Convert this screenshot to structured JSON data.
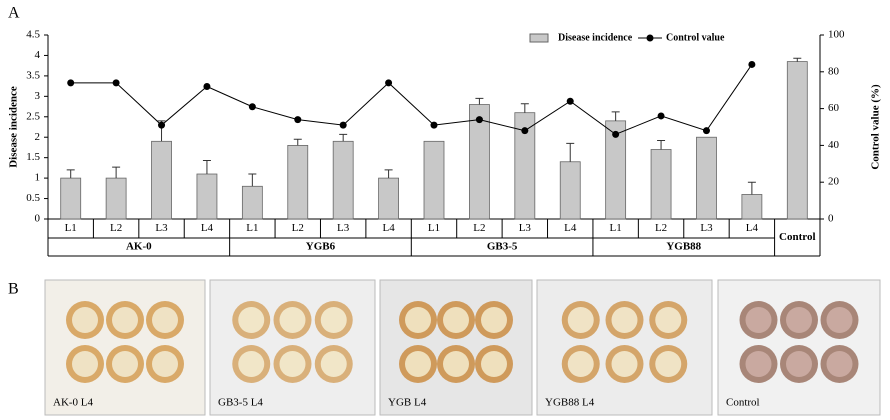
{
  "chart_data": {
    "type": "bar-line",
    "ylabel": "Disease incidence",
    "y2label": "Control value (%)",
    "categories": [
      "L1",
      "L2",
      "L3",
      "L4",
      "L1",
      "L2",
      "L3",
      "L4",
      "L1",
      "L2",
      "L3",
      "L4",
      "L1",
      "L2",
      "L3",
      "L4",
      "Control"
    ],
    "groups": [
      "AK-0",
      "YGB6",
      "GB3-5",
      "YGB88"
    ],
    "series": [
      {
        "name": "Disease incidence",
        "color": "#c8c8c8",
        "values": [
          1.0,
          1.0,
          1.9,
          1.1,
          0.8,
          1.8,
          1.9,
          1.0,
          1.9,
          2.8,
          2.6,
          1.4,
          2.4,
          1.7,
          2.0,
          0.6,
          3.85
        ],
        "errors": [
          0.2,
          0.27,
          0.5,
          0.33,
          0.3,
          0.15,
          0.17,
          0.2,
          null,
          0.15,
          0.22,
          0.45,
          0.22,
          0.22,
          null,
          0.3,
          0.08
        ]
      },
      {
        "name": "Control value",
        "color": "#000000",
        "axis": "y2",
        "values": [
          74,
          74,
          51,
          72,
          61,
          54,
          51,
          74,
          51,
          54,
          48,
          64,
          46,
          56,
          48,
          84,
          null
        ]
      }
    ],
    "ylim": [
      0,
      4.5
    ],
    "yticks": [
      0,
      0.5,
      1,
      1.5,
      2,
      2.5,
      3,
      3.5,
      4,
      4.5
    ],
    "y2lim": [
      0,
      100
    ],
    "y2ticks": [
      0,
      20,
      40,
      60,
      80,
      100
    ]
  },
  "panel_labels": [
    "A",
    "B"
  ],
  "photos": [
    {
      "label": "AK-0 L4"
    },
    {
      "label": "GB3-5  L4"
    },
    {
      "label": "YGB  L4"
    },
    {
      "label": "YGB88   L4"
    },
    {
      "label": "Control"
    }
  ]
}
